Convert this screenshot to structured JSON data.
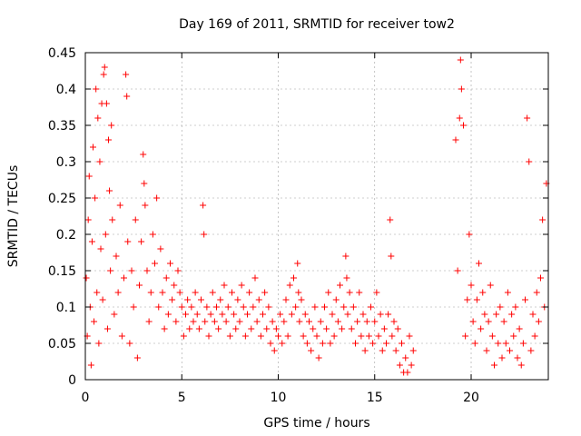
{
  "chart_data": {
    "type": "scatter",
    "title": "Day 169 of 2011, SRMTID for receiver tow2",
    "xlabel": "GPS time / hours",
    "ylabel": "SRMTID / TECUs",
    "xlim": [
      0,
      24
    ],
    "ylim": [
      0,
      0.45
    ],
    "x_ticks": [
      0,
      5,
      10,
      15,
      20
    ],
    "y_ticks": [
      0,
      0.05,
      0.1,
      0.15,
      0.2,
      0.25,
      0.3,
      0.35,
      0.4,
      0.45
    ],
    "x_tick_labels": [
      "0",
      "5",
      "10",
      "15",
      "20"
    ],
    "y_tick_labels": [
      "0",
      "0.05",
      "0.1",
      "0.15",
      "0.2",
      "0.25",
      "0.3",
      "0.35",
      "0.4",
      "0.45"
    ],
    "grid": true,
    "marker": "+",
    "marker_color": "#ff0000",
    "series": [
      {
        "name": "SRMTID tow2",
        "points": [
          [
            0.05,
            0.14
          ],
          [
            0.1,
            0.06
          ],
          [
            0.15,
            0.22
          ],
          [
            0.2,
            0.28
          ],
          [
            0.25,
            0.1
          ],
          [
            0.3,
            0.02
          ],
          [
            0.35,
            0.19
          ],
          [
            0.4,
            0.32
          ],
          [
            0.45,
            0.08
          ],
          [
            0.5,
            0.25
          ],
          [
            0.55,
            0.4
          ],
          [
            0.6,
            0.12
          ],
          [
            0.65,
            0.36
          ],
          [
            0.7,
            0.05
          ],
          [
            0.75,
            0.3
          ],
          [
            0.8,
            0.18
          ],
          [
            0.85,
            0.38
          ],
          [
            0.9,
            0.11
          ],
          [
            0.95,
            0.42
          ],
          [
            1.0,
            0.43
          ],
          [
            1.05,
            0.2
          ],
          [
            1.1,
            0.38
          ],
          [
            1.15,
            0.07
          ],
          [
            1.2,
            0.33
          ],
          [
            1.25,
            0.26
          ],
          [
            1.3,
            0.15
          ],
          [
            1.35,
            0.35
          ],
          [
            1.4,
            0.22
          ],
          [
            1.5,
            0.09
          ],
          [
            1.6,
            0.17
          ],
          [
            1.7,
            0.12
          ],
          [
            1.8,
            0.24
          ],
          [
            1.9,
            0.06
          ],
          [
            2.0,
            0.14
          ],
          [
            2.1,
            0.42
          ],
          [
            2.15,
            0.39
          ],
          [
            2.2,
            0.19
          ],
          [
            2.3,
            0.05
          ],
          [
            2.4,
            0.15
          ],
          [
            2.5,
            0.1
          ],
          [
            2.6,
            0.22
          ],
          [
            2.7,
            0.03
          ],
          [
            2.8,
            0.13
          ],
          [
            2.9,
            0.19
          ],
          [
            3.0,
            0.31
          ],
          [
            3.05,
            0.27
          ],
          [
            3.1,
            0.24
          ],
          [
            3.2,
            0.15
          ],
          [
            3.3,
            0.08
          ],
          [
            3.4,
            0.12
          ],
          [
            3.5,
            0.2
          ],
          [
            3.6,
            0.16
          ],
          [
            3.7,
            0.25
          ],
          [
            3.8,
            0.1
          ],
          [
            3.9,
            0.18
          ],
          [
            4.0,
            0.12
          ],
          [
            4.1,
            0.07
          ],
          [
            4.2,
            0.14
          ],
          [
            4.3,
            0.09
          ],
          [
            4.4,
            0.16
          ],
          [
            4.5,
            0.11
          ],
          [
            4.6,
            0.13
          ],
          [
            4.7,
            0.08
          ],
          [
            4.8,
            0.15
          ],
          [
            4.9,
            0.12
          ],
          [
            5.0,
            0.1
          ],
          [
            5.1,
            0.06
          ],
          [
            5.2,
            0.09
          ],
          [
            5.3,
            0.11
          ],
          [
            5.4,
            0.07
          ],
          [
            5.5,
            0.1
          ],
          [
            5.6,
            0.08
          ],
          [
            5.7,
            0.12
          ],
          [
            5.8,
            0.09
          ],
          [
            5.9,
            0.07
          ],
          [
            6.0,
            0.11
          ],
          [
            6.1,
            0.24
          ],
          [
            6.15,
            0.2
          ],
          [
            6.2,
            0.08
          ],
          [
            6.3,
            0.1
          ],
          [
            6.4,
            0.06
          ],
          [
            6.5,
            0.09
          ],
          [
            6.6,
            0.12
          ],
          [
            6.7,
            0.08
          ],
          [
            6.8,
            0.1
          ],
          [
            6.9,
            0.07
          ],
          [
            7.0,
            0.11
          ],
          [
            7.1,
            0.09
          ],
          [
            7.2,
            0.13
          ],
          [
            7.3,
            0.08
          ],
          [
            7.4,
            0.1
          ],
          [
            7.5,
            0.06
          ],
          [
            7.6,
            0.12
          ],
          [
            7.7,
            0.09
          ],
          [
            7.8,
            0.07
          ],
          [
            7.9,
            0.11
          ],
          [
            8.0,
            0.08
          ],
          [
            8.1,
            0.13
          ],
          [
            8.2,
            0.1
          ],
          [
            8.3,
            0.06
          ],
          [
            8.4,
            0.09
          ],
          [
            8.5,
            0.12
          ],
          [
            8.6,
            0.07
          ],
          [
            8.7,
            0.1
          ],
          [
            8.8,
            0.14
          ],
          [
            8.9,
            0.08
          ],
          [
            9.0,
            0.11
          ],
          [
            9.1,
            0.06
          ],
          [
            9.2,
            0.09
          ],
          [
            9.3,
            0.12
          ],
          [
            9.4,
            0.07
          ],
          [
            9.5,
            0.1
          ],
          [
            9.6,
            0.05
          ],
          [
            9.7,
            0.08
          ],
          [
            9.8,
            0.04
          ],
          [
            9.9,
            0.07
          ],
          [
            10.0,
            0.06
          ],
          [
            10.1,
            0.09
          ],
          [
            10.2,
            0.05
          ],
          [
            10.3,
            0.08
          ],
          [
            10.4,
            0.11
          ],
          [
            10.5,
            0.06
          ],
          [
            10.6,
            0.13
          ],
          [
            10.7,
            0.09
          ],
          [
            10.8,
            0.14
          ],
          [
            10.9,
            0.1
          ],
          [
            11.0,
            0.16
          ],
          [
            11.05,
            0.12
          ],
          [
            11.1,
            0.08
          ],
          [
            11.2,
            0.11
          ],
          [
            11.3,
            0.06
          ],
          [
            11.4,
            0.09
          ],
          [
            11.5,
            0.05
          ],
          [
            11.6,
            0.08
          ],
          [
            11.7,
            0.04
          ],
          [
            11.8,
            0.07
          ],
          [
            11.9,
            0.1
          ],
          [
            12.0,
            0.06
          ],
          [
            12.1,
            0.03
          ],
          [
            12.2,
            0.08
          ],
          [
            12.3,
            0.05
          ],
          [
            12.4,
            0.1
          ],
          [
            12.5,
            0.07
          ],
          [
            12.6,
            0.12
          ],
          [
            12.7,
            0.05
          ],
          [
            12.8,
            0.09
          ],
          [
            12.9,
            0.06
          ],
          [
            13.0,
            0.11
          ],
          [
            13.1,
            0.08
          ],
          [
            13.2,
            0.13
          ],
          [
            13.3,
            0.07
          ],
          [
            13.4,
            0.1
          ],
          [
            13.5,
            0.17
          ],
          [
            13.55,
            0.14
          ],
          [
            13.6,
            0.09
          ],
          [
            13.7,
            0.12
          ],
          [
            13.8,
            0.07
          ],
          [
            13.9,
            0.1
          ],
          [
            14.0,
            0.05
          ],
          [
            14.1,
            0.08
          ],
          [
            14.2,
            0.12
          ],
          [
            14.3,
            0.06
          ],
          [
            14.4,
            0.09
          ],
          [
            14.5,
            0.04
          ],
          [
            14.6,
            0.08
          ],
          [
            14.7,
            0.06
          ],
          [
            14.8,
            0.1
          ],
          [
            14.9,
            0.05
          ],
          [
            15.0,
            0.08
          ],
          [
            15.1,
            0.12
          ],
          [
            15.2,
            0.06
          ],
          [
            15.3,
            0.09
          ],
          [
            15.4,
            0.04
          ],
          [
            15.5,
            0.07
          ],
          [
            15.6,
            0.05
          ],
          [
            15.7,
            0.09
          ],
          [
            15.8,
            0.22
          ],
          [
            15.85,
            0.17
          ],
          [
            15.9,
            0.06
          ],
          [
            16.0,
            0.08
          ],
          [
            16.1,
            0.04
          ],
          [
            16.2,
            0.07
          ],
          [
            16.3,
            0.02
          ],
          [
            16.4,
            0.05
          ],
          [
            16.5,
            0.01
          ],
          [
            16.6,
            0.03
          ],
          [
            16.7,
            0.01
          ],
          [
            16.8,
            0.06
          ],
          [
            16.9,
            0.02
          ],
          [
            17.0,
            0.04
          ],
          [
            19.2,
            0.33
          ],
          [
            19.3,
            0.15
          ],
          [
            19.4,
            0.36
          ],
          [
            19.45,
            0.44
          ],
          [
            19.5,
            0.4
          ],
          [
            19.6,
            0.35
          ],
          [
            19.7,
            0.06
          ],
          [
            19.8,
            0.11
          ],
          [
            19.9,
            0.2
          ],
          [
            20.0,
            0.13
          ],
          [
            20.1,
            0.08
          ],
          [
            20.2,
            0.05
          ],
          [
            20.3,
            0.11
          ],
          [
            20.4,
            0.16
          ],
          [
            20.5,
            0.07
          ],
          [
            20.6,
            0.12
          ],
          [
            20.7,
            0.09
          ],
          [
            20.8,
            0.04
          ],
          [
            20.9,
            0.08
          ],
          [
            21.0,
            0.13
          ],
          [
            21.1,
            0.06
          ],
          [
            21.2,
            0.02
          ],
          [
            21.3,
            0.09
          ],
          [
            21.4,
            0.05
          ],
          [
            21.5,
            0.1
          ],
          [
            21.6,
            0.03
          ],
          [
            21.7,
            0.08
          ],
          [
            21.8,
            0.05
          ],
          [
            21.9,
            0.12
          ],
          [
            22.0,
            0.04
          ],
          [
            22.1,
            0.09
          ],
          [
            22.2,
            0.06
          ],
          [
            22.3,
            0.1
          ],
          [
            22.4,
            0.03
          ],
          [
            22.5,
            0.07
          ],
          [
            22.6,
            0.02
          ],
          [
            22.7,
            0.05
          ],
          [
            22.8,
            0.11
          ],
          [
            22.9,
            0.36
          ],
          [
            23.0,
            0.3
          ],
          [
            23.1,
            0.04
          ],
          [
            23.2,
            0.09
          ],
          [
            23.3,
            0.06
          ],
          [
            23.4,
            0.12
          ],
          [
            23.5,
            0.08
          ],
          [
            23.6,
            0.14
          ],
          [
            23.7,
            0.22
          ],
          [
            23.8,
            0.1
          ],
          [
            23.9,
            0.27
          ]
        ]
      }
    ]
  }
}
